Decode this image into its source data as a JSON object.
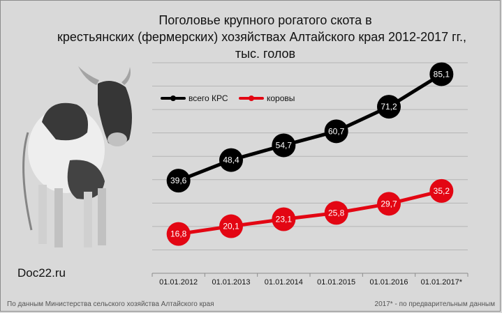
{
  "title_lines": [
    "Поголовье крупного рогатого скота в",
    "крестьянских (фермерских) хозяйствах Алтайского края 2012-2017 гг.,",
    "тыс. голов"
  ],
  "site": "Doc22.ru",
  "footnote_left": "По данным Министерства сельского хозяйства Алтайского края",
  "footnote_right": "2017* - по предварительным данным",
  "chart_data": {
    "type": "line",
    "categories": [
      "01.01.2012",
      "01.01.2013",
      "01.01.2014",
      "01.01.2015",
      "01.01.2016",
      "01.01.2017*"
    ],
    "series": [
      {
        "name": "всего КРС",
        "values": [
          39.6,
          48.4,
          54.7,
          60.7,
          71.2,
          85.1
        ],
        "labels": [
          "39,6",
          "48,4",
          "54,7",
          "60,7",
          "71,2",
          "85,1"
        ],
        "color": "#000000"
      },
      {
        "name": "коровы",
        "values": [
          16.8,
          20.1,
          23.1,
          25.8,
          29.7,
          35.2
        ],
        "labels": [
          "16,8",
          "20,1",
          "23,1",
          "25,8",
          "29,7",
          "35,2"
        ],
        "color": "#e30613"
      }
    ],
    "ylim": [
      0,
      90
    ],
    "grid": true,
    "legend_position": "top-left"
  },
  "icons": [
    "cow-illustration"
  ]
}
